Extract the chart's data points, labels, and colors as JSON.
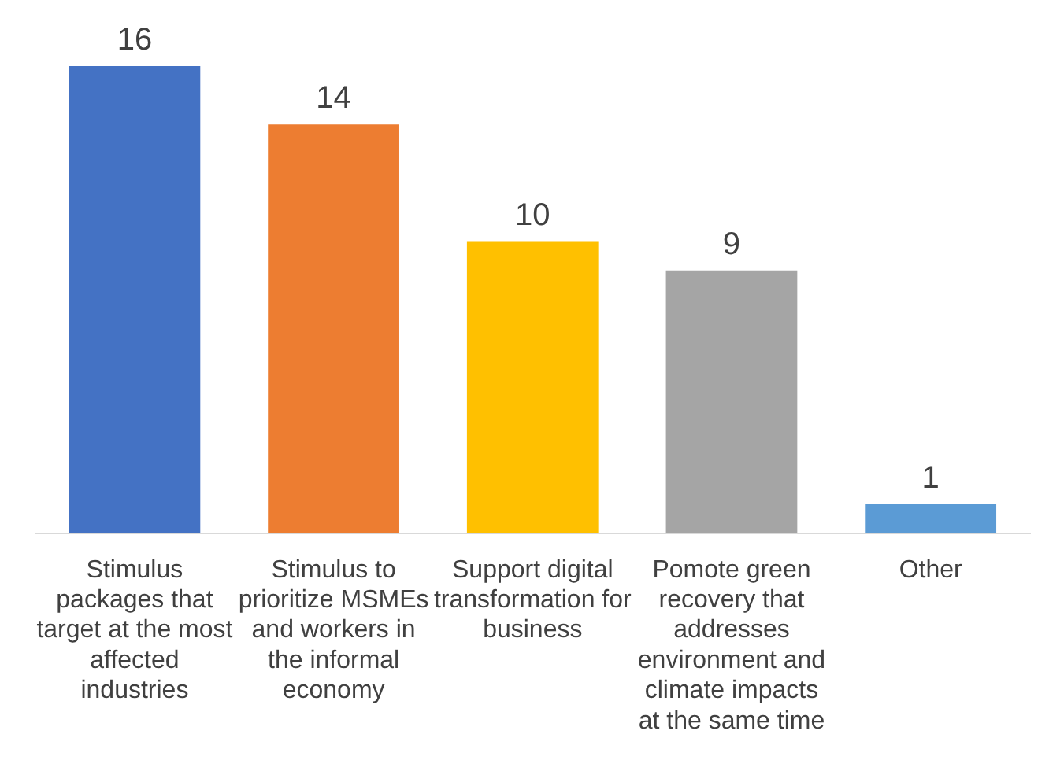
{
  "chart_data": {
    "type": "bar",
    "categories": [
      "Stimulus packages that target at the most affected industries",
      "Stimulus to prioritize MSMEs and workers in the informal economy",
      "Support digital transformation for business",
      "Pomote green recovery that addresses environment and climate impacts at the same time",
      "Other"
    ],
    "values": [
      16,
      14,
      10,
      9,
      1
    ],
    "colors": [
      "#4472c4",
      "#ed7d31",
      "#ffc000",
      "#a5a5a5",
      "#5b9bd5"
    ],
    "data_labels": true,
    "grid": false,
    "legend": false
  }
}
